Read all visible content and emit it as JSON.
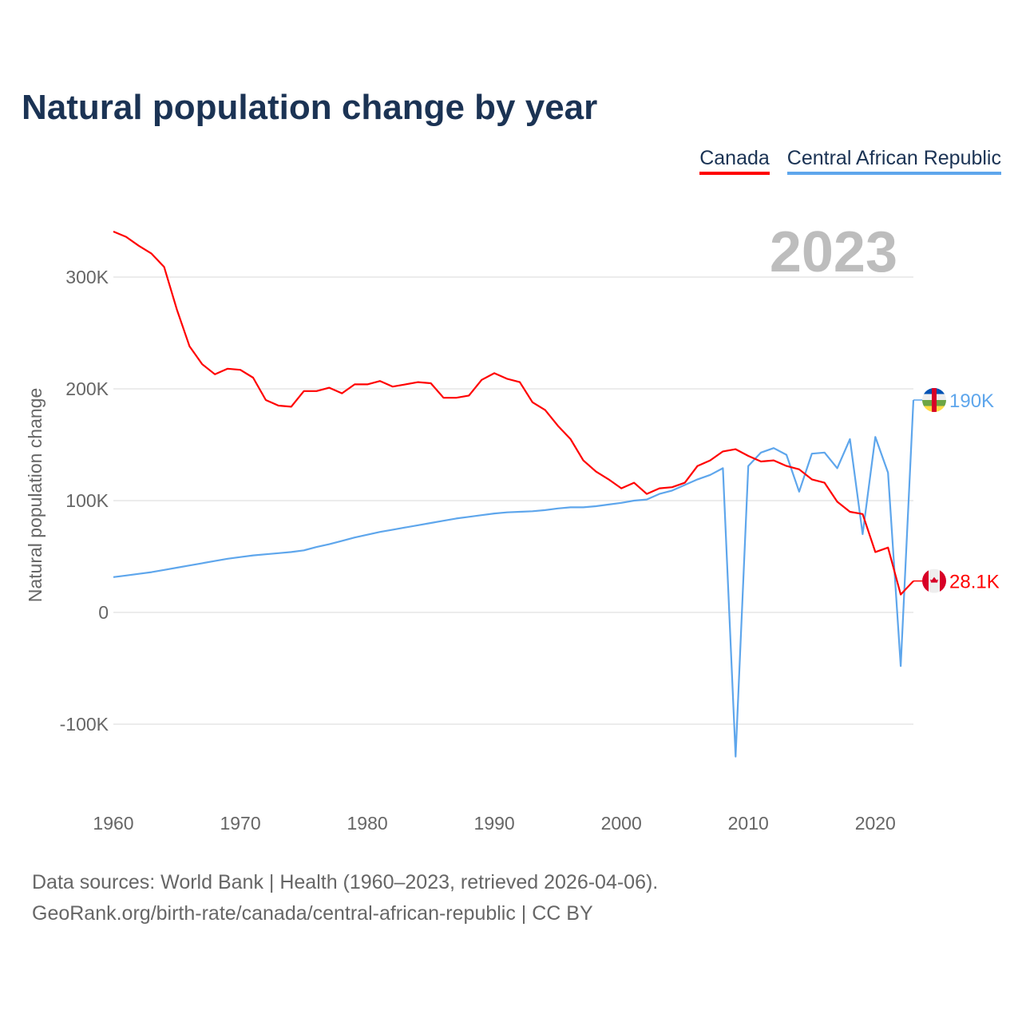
{
  "title": "Natural population change by year",
  "chart_data": {
    "type": "line",
    "title": "Natural population change by year",
    "ylabel": "Natural population change",
    "xlabel": "",
    "year_label": "2023",
    "xlim": [
      1960,
      2023
    ],
    "ylim": [
      -150000,
      350000
    ],
    "yticks": [
      -100000,
      0,
      100000,
      200000,
      300000
    ],
    "ytick_labels": [
      "-100K",
      "0",
      "100K",
      "200K",
      "300K"
    ],
    "xticks": [
      1960,
      1970,
      1980,
      1990,
      2000,
      2010,
      2020
    ],
    "xtick_labels": [
      "1960",
      "1970",
      "1980",
      "1990",
      "2000",
      "2010",
      "2020"
    ],
    "grid": true,
    "legend_position": "top-right",
    "x": [
      1960,
      1961,
      1962,
      1963,
      1964,
      1965,
      1966,
      1967,
      1968,
      1969,
      1970,
      1971,
      1972,
      1973,
      1974,
      1975,
      1976,
      1977,
      1978,
      1979,
      1980,
      1981,
      1982,
      1983,
      1984,
      1985,
      1986,
      1987,
      1988,
      1989,
      1990,
      1991,
      1992,
      1993,
      1994,
      1995,
      1996,
      1997,
      1998,
      1999,
      2000,
      2001,
      2002,
      2003,
      2004,
      2005,
      2006,
      2007,
      2008,
      2009,
      2010,
      2011,
      2012,
      2013,
      2014,
      2015,
      2016,
      2017,
      2018,
      2019,
      2020,
      2021,
      2022,
      2023
    ],
    "series": [
      {
        "name": "Canada",
        "color": "#ff0000",
        "end_label": "28.1K",
        "values": [
          340700,
          336000,
          328000,
          321000,
          309000,
          271000,
          238000,
          222000,
          213000,
          218000,
          217000,
          210000,
          190000,
          185000,
          184000,
          198000,
          198000,
          201000,
          196000,
          204000,
          204000,
          207000,
          202000,
          204000,
          206000,
          205000,
          192000,
          192000,
          194000,
          208000,
          214000,
          209000,
          206000,
          188000,
          181000,
          167000,
          155000,
          136000,
          126000,
          119000,
          111000,
          116000,
          106000,
          111000,
          112000,
          116000,
          131000,
          136000,
          144000,
          146000,
          140000,
          135000,
          136000,
          131000,
          128000,
          119000,
          116000,
          99000,
          90000,
          88000,
          54000,
          58000,
          16000,
          28100
        ]
      },
      {
        "name": "Central African Republic",
        "color": "#5ea6ec",
        "end_label": "190K",
        "values": [
          31600,
          33000,
          34500,
          36000,
          38000,
          40000,
          42000,
          44000,
          46000,
          48000,
          49500,
          51000,
          52000,
          53000,
          54000,
          55500,
          58500,
          61000,
          64000,
          67000,
          69500,
          72000,
          74000,
          76000,
          78000,
          80000,
          82000,
          84000,
          85500,
          87000,
          88500,
          89500,
          90000,
          90500,
          91500,
          93000,
          94000,
          94000,
          95000,
          96500,
          98000,
          100000,
          101000,
          106000,
          109000,
          114000,
          119000,
          123000,
          129000,
          -129000,
          131000,
          143000,
          147000,
          141000,
          108000,
          142000,
          143000,
          129000,
          155000,
          70000,
          157000,
          125000,
          -48000,
          190000
        ]
      }
    ]
  },
  "source": {
    "line1": "Data sources: World Bank | Health (1960–2023, retrieved 2026-04-06).",
    "line2": "GeoRank.org/birth-rate/canada/central-african-republic | CC BY"
  }
}
